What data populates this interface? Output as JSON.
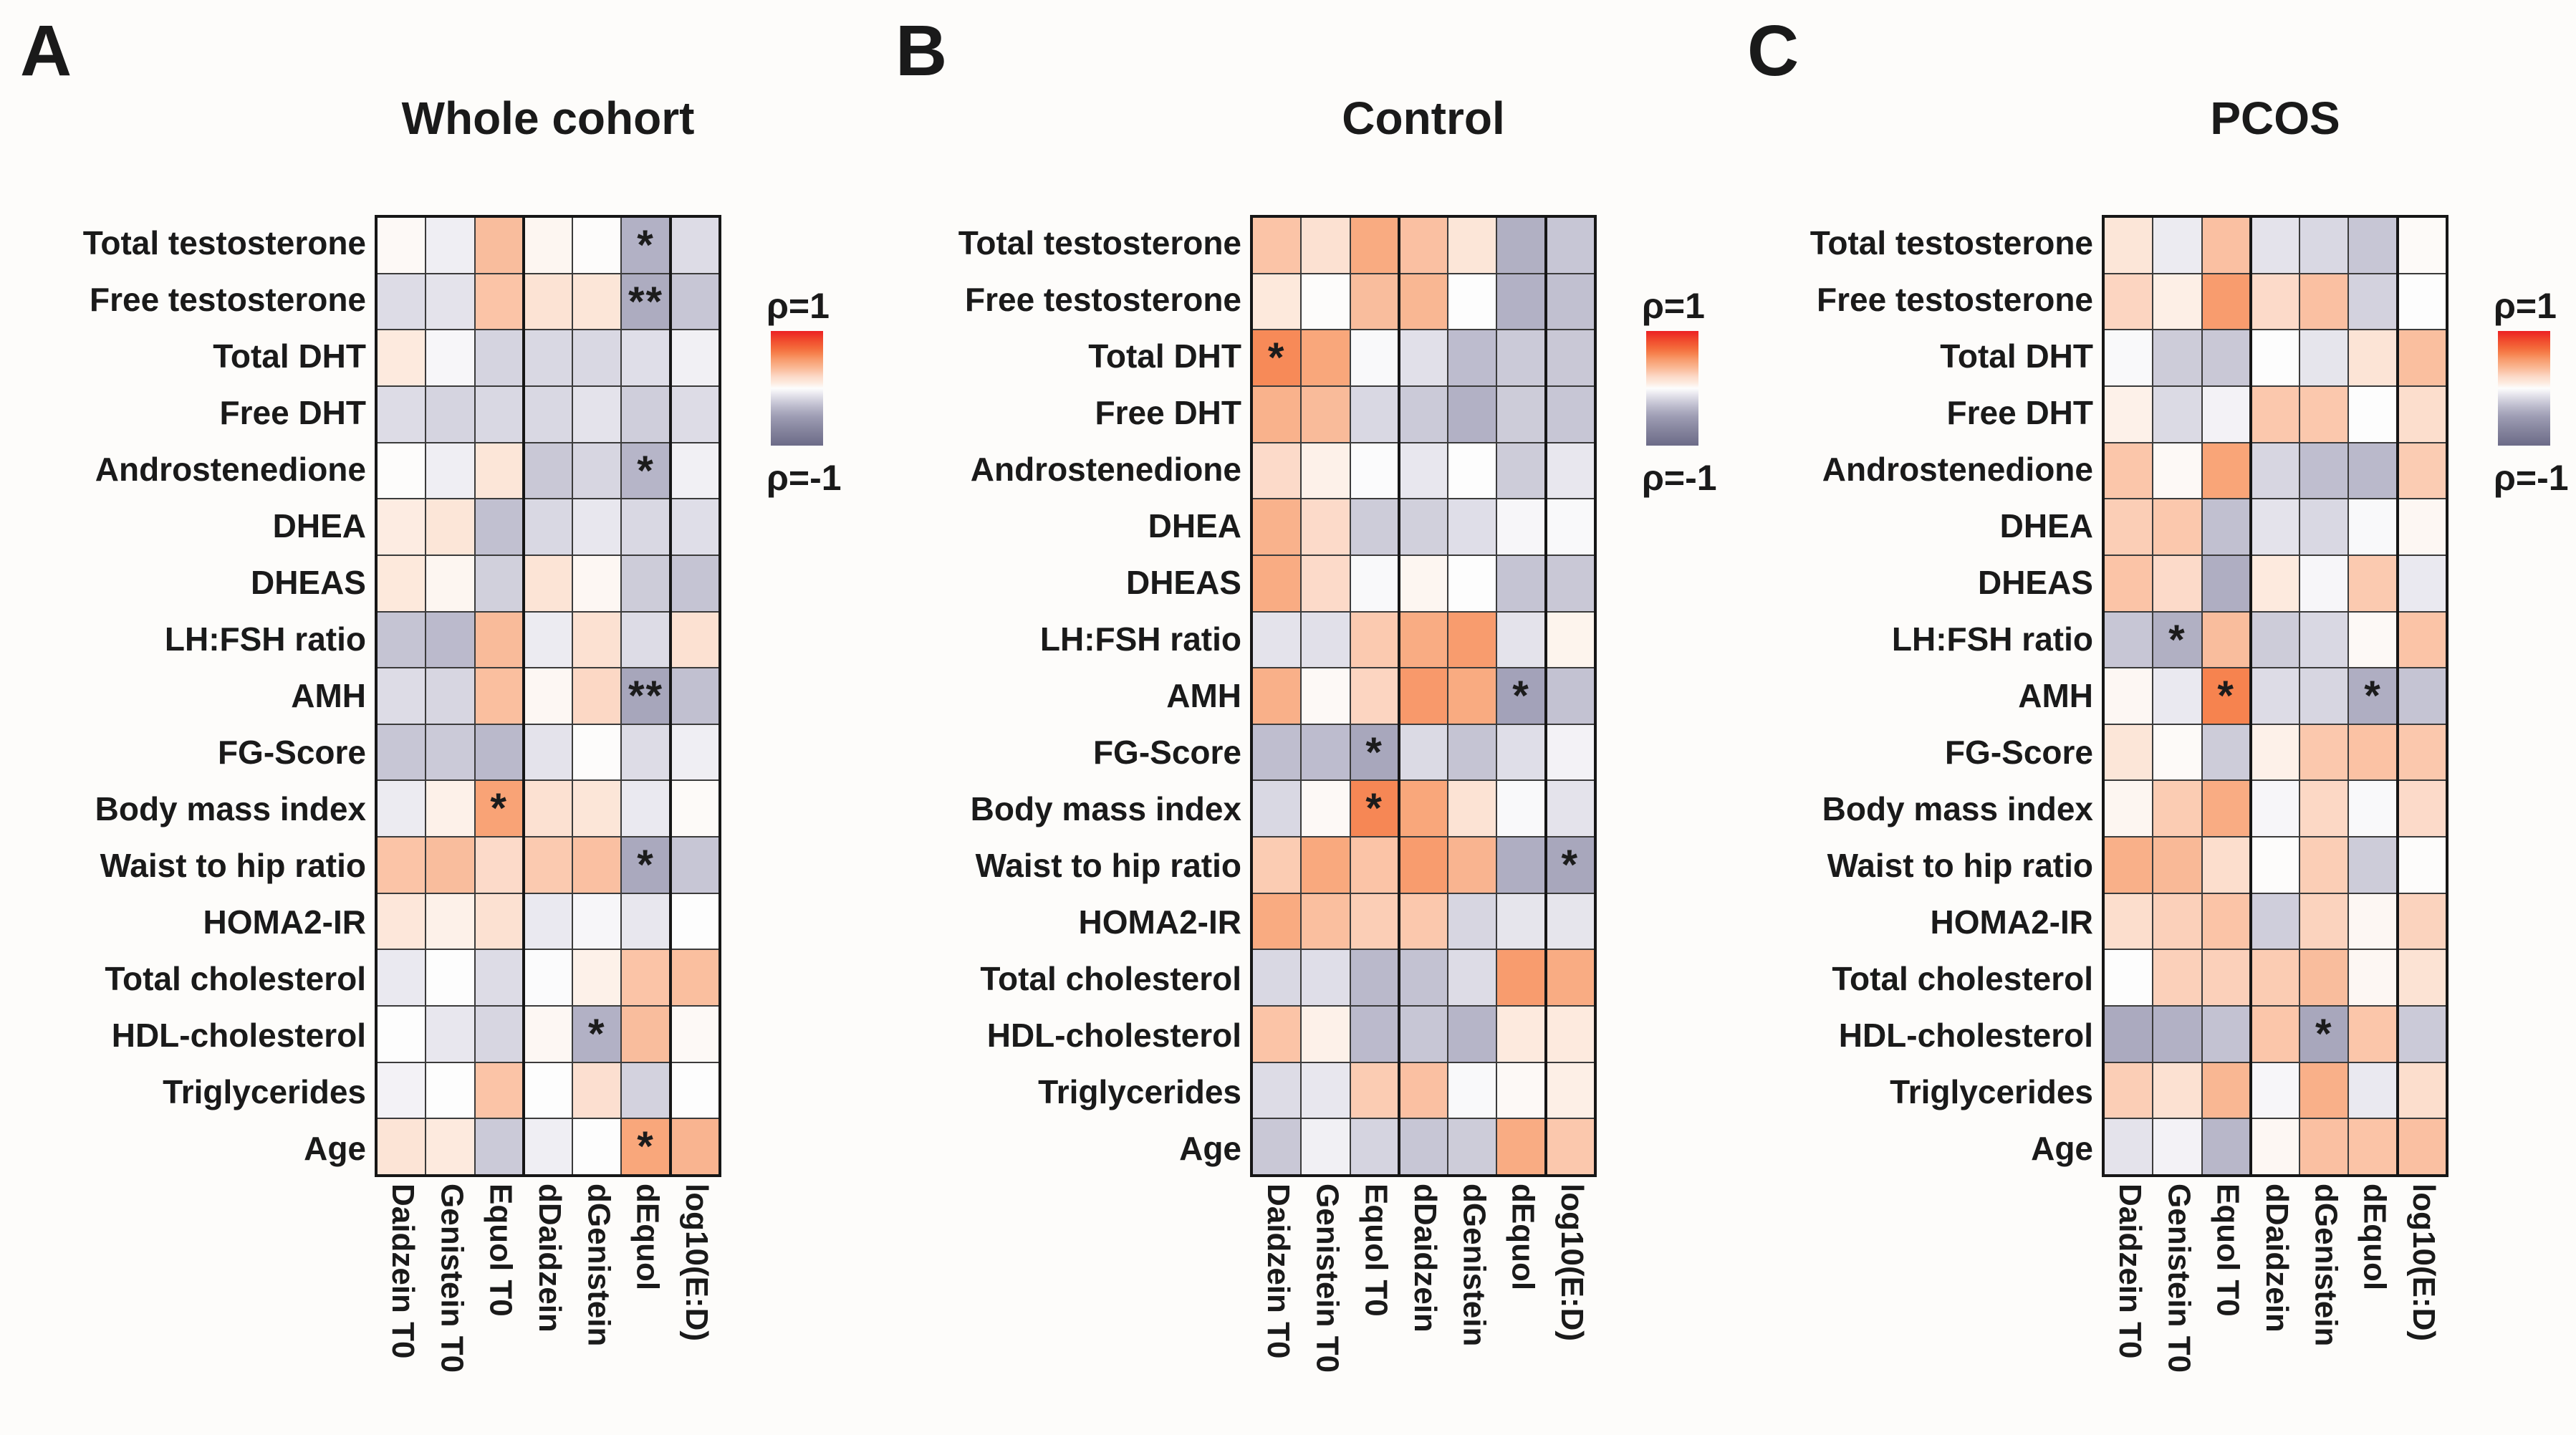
{
  "chart_data": {
    "type": "heatmap",
    "description": "Spearman correlation heatmaps of isoflavone measures vs clinical parameters",
    "rows": [
      "Total testosterone",
      "Free testosterone",
      "Total DHT",
      "Free DHT",
      "Androstenedione",
      "DHEA",
      "DHEAS",
      "LH:FSH ratio",
      "AMH",
      "FG-Score",
      "Body mass index",
      "Waist to hip ratio",
      "HOMA2-IR",
      "Total cholesterol",
      "HDL-cholesterol",
      "Triglycerides",
      "Age"
    ],
    "columns": [
      "Daidzein T0",
      "Genistein T0",
      "Equol T0",
      "dDaidzein",
      "dGenistein",
      "dEquol",
      "log10(E:D)"
    ],
    "colorbar": {
      "top": "ρ=1",
      "bottom": "ρ=-1",
      "max": 1,
      "min": -1
    },
    "colormap": {
      "pos": [
        [
          0,
          "#fdfdfd"
        ],
        [
          0.05,
          "#fdf6f1"
        ],
        [
          0.1,
          "#fdeade"
        ],
        [
          0.15,
          "#fce3d4"
        ],
        [
          0.2,
          "#fcdac9"
        ],
        [
          0.25,
          "#fbceb6"
        ],
        [
          0.3,
          "#fbc4a7"
        ],
        [
          0.35,
          "#f9bb9a"
        ],
        [
          0.4,
          "#f9b089"
        ],
        [
          0.45,
          "#f9a77b"
        ],
        [
          0.5,
          "#f89c6e"
        ],
        [
          0.55,
          "#f78e5e"
        ],
        [
          0.6,
          "#f6834f"
        ],
        [
          0.7,
          "#f46a3b"
        ],
        [
          0.85,
          "#f0482c"
        ],
        [
          1,
          "#ec2024"
        ]
      ],
      "neg": [
        [
          0,
          "#fdfdfd"
        ],
        [
          0.05,
          "#f3f2f6"
        ],
        [
          0.1,
          "#e8e7ee"
        ],
        [
          0.15,
          "#dddce6"
        ],
        [
          0.2,
          "#d3d2de"
        ],
        [
          0.25,
          "#c9c8d6"
        ],
        [
          0.3,
          "#bfbecf"
        ],
        [
          0.35,
          "#b6b5c8"
        ],
        [
          0.4,
          "#adacc0"
        ],
        [
          0.45,
          "#a5a4ba"
        ],
        [
          0.5,
          "#9d9cb3"
        ],
        [
          0.7,
          "#8887a0"
        ],
        [
          1,
          "#6c6b88"
        ]
      ]
    },
    "panels": [
      {
        "label": "A",
        "title": "Whole cohort",
        "rho": [
          [
            0.03,
            -0.07,
            0.34,
            0.05,
            0.01,
            -0.37,
            -0.15
          ],
          [
            -0.15,
            -0.12,
            0.3,
            0.15,
            0.13,
            -0.4,
            -0.26
          ],
          [
            0.1,
            -0.03,
            -0.19,
            -0.17,
            -0.17,
            -0.14,
            -0.06
          ],
          [
            -0.15,
            -0.19,
            -0.17,
            -0.17,
            -0.12,
            -0.22,
            -0.15
          ],
          [
            0.01,
            -0.07,
            0.13,
            -0.25,
            -0.18,
            -0.35,
            -0.06
          ],
          [
            0.09,
            0.13,
            -0.29,
            -0.17,
            -0.1,
            -0.17,
            -0.14
          ],
          [
            0.11,
            0.05,
            -0.21,
            0.14,
            0.04,
            -0.23,
            -0.27
          ],
          [
            -0.27,
            -0.32,
            0.35,
            -0.08,
            0.16,
            -0.15,
            0.16
          ],
          [
            -0.15,
            -0.18,
            0.33,
            0.04,
            0.21,
            -0.44,
            -0.29
          ],
          [
            -0.26,
            -0.24,
            -0.33,
            -0.12,
            0.01,
            -0.15,
            -0.07
          ],
          [
            -0.08,
            0.07,
            0.47,
            0.16,
            0.13,
            -0.09,
            0.02
          ],
          [
            0.3,
            0.34,
            0.2,
            0.27,
            0.32,
            -0.42,
            -0.26
          ],
          [
            0.12,
            0.07,
            0.16,
            -0.09,
            -0.03,
            -0.1,
            0.0
          ],
          [
            -0.09,
            0.0,
            -0.15,
            -0.01,
            0.07,
            0.3,
            0.33
          ],
          [
            0.0,
            -0.1,
            -0.18,
            0.04,
            -0.37,
            0.34,
            0.03
          ],
          [
            -0.05,
            0.0,
            0.3,
            0.0,
            0.17,
            -0.2,
            0.0
          ],
          [
            0.14,
            0.1,
            -0.24,
            -0.07,
            0.0,
            0.45,
            0.38
          ]
        ],
        "sig": {
          "0,5": "*",
          "1,5": "**",
          "4,5": "*",
          "8,5": "**",
          "10,2": "*",
          "11,5": "*",
          "14,4": "*",
          "16,5": "*"
        }
      },
      {
        "label": "B",
        "title": "Control",
        "rho": [
          [
            0.3,
            0.16,
            0.43,
            0.32,
            0.13,
            -0.38,
            -0.26
          ],
          [
            0.11,
            0.01,
            0.34,
            0.37,
            0.0,
            -0.37,
            -0.29
          ],
          [
            0.57,
            0.45,
            -0.02,
            -0.13,
            -0.31,
            -0.24,
            -0.25
          ],
          [
            0.39,
            0.35,
            -0.17,
            -0.24,
            -0.37,
            -0.23,
            -0.26
          ],
          [
            0.2,
            0.07,
            -0.01,
            -0.1,
            0.0,
            -0.23,
            -0.1
          ],
          [
            0.39,
            0.2,
            -0.23,
            -0.21,
            -0.14,
            -0.03,
            -0.02
          ],
          [
            0.42,
            0.2,
            -0.02,
            0.05,
            0.0,
            -0.27,
            -0.25
          ],
          [
            -0.12,
            -0.13,
            0.27,
            0.42,
            0.5,
            -0.12,
            0.06
          ],
          [
            0.4,
            0.03,
            0.22,
            0.51,
            0.43,
            -0.46,
            -0.28
          ],
          [
            -0.3,
            -0.31,
            -0.43,
            -0.16,
            -0.27,
            -0.14,
            -0.05
          ],
          [
            -0.17,
            0.03,
            0.58,
            0.45,
            0.15,
            -0.02,
            -0.12
          ],
          [
            0.26,
            0.44,
            0.3,
            0.5,
            0.38,
            -0.39,
            -0.43
          ],
          [
            0.43,
            0.33,
            0.25,
            0.28,
            -0.18,
            -0.11,
            -0.11
          ],
          [
            -0.17,
            -0.14,
            -0.33,
            -0.28,
            -0.15,
            0.5,
            0.42
          ],
          [
            0.3,
            0.07,
            -0.32,
            -0.26,
            -0.35,
            0.1,
            0.1
          ],
          [
            -0.15,
            -0.1,
            0.26,
            0.32,
            -0.02,
            0.03,
            0.08
          ],
          [
            -0.25,
            -0.06,
            -0.19,
            -0.26,
            -0.23,
            0.42,
            0.28
          ]
        ],
        "sig": {
          "2,0": "*",
          "8,5": "*",
          "9,2": "*",
          "10,2": "*",
          "11,6": "*"
        }
      },
      {
        "label": "C",
        "title": "PCOS",
        "rho": [
          [
            0.13,
            -0.08,
            0.32,
            -0.12,
            -0.17,
            -0.26,
            0.02
          ],
          [
            0.22,
            0.08,
            0.5,
            0.2,
            0.32,
            -0.2,
            0.0
          ],
          [
            -0.02,
            -0.23,
            -0.25,
            0.0,
            -0.11,
            0.14,
            0.33
          ],
          [
            0.07,
            -0.16,
            -0.05,
            0.28,
            0.28,
            0.0,
            0.18
          ],
          [
            0.29,
            0.03,
            0.46,
            -0.18,
            -0.3,
            -0.33,
            0.26
          ],
          [
            0.25,
            0.28,
            -0.29,
            -0.12,
            -0.17,
            -0.02,
            0.04
          ],
          [
            0.3,
            0.2,
            -0.39,
            0.1,
            -0.03,
            0.27,
            -0.09
          ],
          [
            -0.26,
            -0.38,
            0.34,
            -0.23,
            -0.17,
            0.03,
            0.3
          ],
          [
            0.04,
            -0.09,
            0.6,
            -0.15,
            -0.18,
            -0.39,
            -0.27
          ],
          [
            0.13,
            0.02,
            -0.23,
            0.07,
            0.28,
            0.31,
            0.28
          ],
          [
            0.05,
            0.26,
            0.42,
            -0.03,
            0.21,
            -0.02,
            0.2
          ],
          [
            0.4,
            0.36,
            0.18,
            0.01,
            0.25,
            -0.23,
            0.01
          ],
          [
            0.18,
            0.24,
            0.3,
            -0.22,
            0.23,
            0.04,
            0.23
          ],
          [
            0.0,
            0.24,
            0.24,
            0.26,
            0.34,
            0.04,
            0.15
          ],
          [
            -0.41,
            -0.37,
            -0.28,
            0.29,
            -0.43,
            0.29,
            -0.24
          ],
          [
            0.25,
            0.16,
            0.37,
            -0.03,
            0.4,
            -0.09,
            0.18
          ],
          [
            -0.12,
            -0.05,
            -0.34,
            0.04,
            0.32,
            0.3,
            0.32
          ]
        ],
        "sig": {
          "7,1": "*",
          "8,2": "*",
          "8,5": "*",
          "14,4": "*"
        }
      }
    ]
  }
}
